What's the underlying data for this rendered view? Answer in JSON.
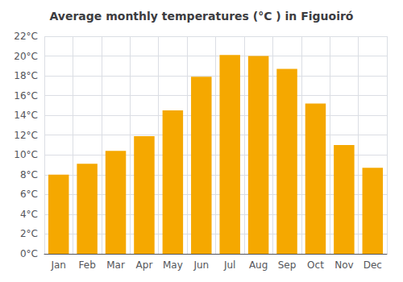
{
  "chart_data": {
    "type": "bar",
    "title": "Average monthly temperatures (°C ) in Figuoiró",
    "categories": [
      "Jan",
      "Feb",
      "Mar",
      "Apr",
      "May",
      "Jun",
      "Jul",
      "Aug",
      "Sep",
      "Oct",
      "Nov",
      "Dec"
    ],
    "values": [
      8.0,
      9.1,
      10.4,
      11.9,
      14.5,
      17.9,
      20.1,
      20.0,
      18.7,
      15.2,
      11.0,
      8.7
    ],
    "color": "#F5A800",
    "ylim": [
      0,
      22
    ],
    "yticks": [
      {
        "value": 0,
        "label": "0°C"
      },
      {
        "value": 2,
        "label": "2°C"
      },
      {
        "value": 4,
        "label": "4°C"
      },
      {
        "value": 6,
        "label": "6°C"
      },
      {
        "value": 8,
        "label": "8°C"
      },
      {
        "value": 10,
        "label": "10°C"
      },
      {
        "value": 12,
        "label": "12°C"
      },
      {
        "value": 14,
        "label": "14°C"
      },
      {
        "value": 16,
        "label": "16°C"
      },
      {
        "value": 18,
        "label": "18°C"
      },
      {
        "value": 20,
        "label": "20°C"
      },
      {
        "value": 22,
        "label": "22°C"
      }
    ],
    "grid": true
  }
}
